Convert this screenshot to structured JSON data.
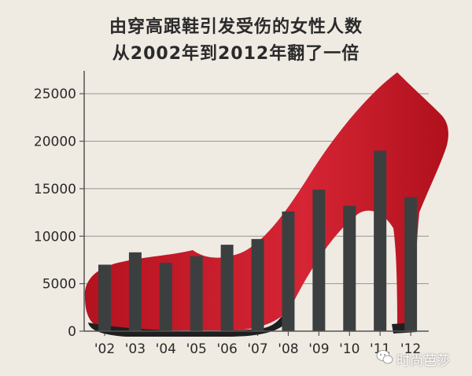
{
  "chart_data": {
    "type": "bar",
    "title_line1": "由穿高跟鞋引发受伤的女性人数",
    "title_line2": "从2002年到2012年翻了一倍",
    "categories": [
      "'02",
      "'03",
      "'04",
      "'05",
      "'06",
      "'07",
      "'08",
      "'09",
      "'10",
      "'11",
      "'12"
    ],
    "values": [
      7000,
      8300,
      7200,
      7900,
      9100,
      9700,
      12600,
      14900,
      13200,
      19000,
      14100
    ],
    "yticks": [
      0,
      5000,
      10000,
      15000,
      20000,
      25000
    ],
    "ylim": [
      0,
      27000
    ],
    "grid": true,
    "bar_color": "#3c3f3f",
    "shoe_color": "#d0202f",
    "background": "#efeae2"
  },
  "watermark": {
    "text": "时尚芭莎",
    "icon": "wechat-icon"
  }
}
